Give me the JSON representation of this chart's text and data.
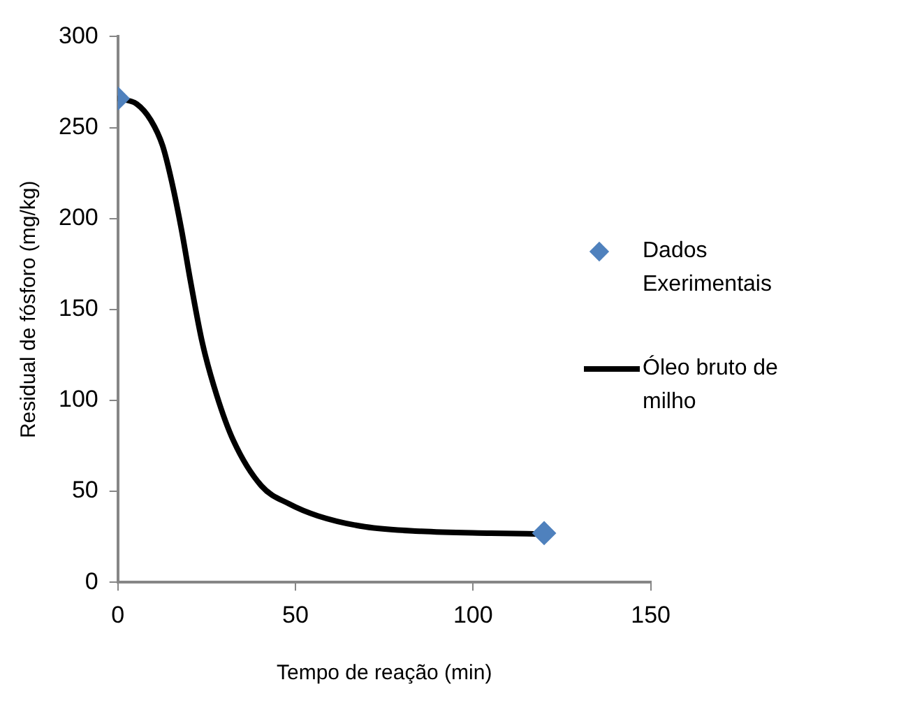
{
  "chart_data": {
    "type": "scatter",
    "xlabel": "Tempo de reação (min)",
    "ylabel": "Residual de fósforo (mg/kg)",
    "xlim": [
      0,
      150
    ],
    "xticks": [
      0,
      50,
      100,
      150
    ],
    "ylim": [
      0,
      300
    ],
    "yticks": [
      0,
      50,
      100,
      150,
      200,
      250,
      300
    ],
    "grid": false,
    "legend": "right",
    "series": [
      {
        "name": "Dados Exerimentais",
        "marker": "diamond",
        "color": "#4f81bd",
        "x": [
          0,
          120
        ],
        "values": [
          266,
          27
        ]
      },
      {
        "name": "Óleo bruto de milho",
        "type": "line",
        "marker": "none",
        "line_style": "solid",
        "color": "#000000",
        "x": [
          0,
          5.3,
          9.3,
          12.6,
          15.2,
          17.9,
          20.5,
          23.8,
          27.8,
          32.5,
          40.4,
          48.3,
          56.3,
          69.5,
          85.4,
          105,
          120
        ],
        "values": [
          266,
          263,
          254,
          240,
          220,
          194,
          165,
          131.5,
          103,
          78,
          53,
          43,
          36.5,
          30.5,
          28,
          27,
          26.5
        ]
      }
    ]
  }
}
